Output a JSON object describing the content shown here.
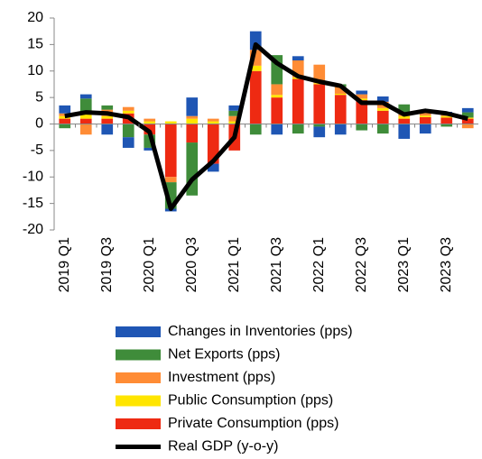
{
  "chart_data": {
    "type": "bar",
    "categories": [
      "2019 Q1",
      null,
      "2019 Q3",
      null,
      "2020 Q1",
      null,
      "2020 Q3",
      null,
      "2021 Q1",
      null,
      "2021 Q3",
      null,
      "2022 Q1",
      null,
      "2022 Q3",
      null,
      "2023 Q1",
      null,
      "2023 Q3",
      null
    ],
    "series": [
      {
        "name": "Changes in Inventories (pps)",
        "type": "bar",
        "color": "#1f56b4",
        "values": [
          1.5,
          0.8,
          -2.0,
          -2.0,
          -0.5,
          -0.5,
          3.5,
          -1.5,
          1.0,
          3.5,
          -2.0,
          0.8,
          -2.0,
          -2.0,
          0.7,
          1.0,
          -2.8,
          -1.8,
          0.5,
          0.8
        ]
      },
      {
        "name": "Net Exports (pps)",
        "type": "bar",
        "color": "#3f8c3a",
        "values": [
          -0.8,
          3.0,
          0.8,
          -2.5,
          -2.5,
          -5.0,
          -10.0,
          0.0,
          1.0,
          -2.0,
          5.5,
          -1.8,
          -0.5,
          0.5,
          -1.2,
          -1.8,
          1.9,
          0.3,
          -0.5,
          1.0
        ]
      },
      {
        "name": "Investment (pps)",
        "type": "bar",
        "color": "#ff8c35",
        "values": [
          0.5,
          -2.0,
          1.2,
          0.7,
          0.5,
          -1.0,
          0.5,
          0.5,
          1.0,
          3.0,
          2.0,
          3.2,
          3.5,
          1.3,
          0.8,
          1.2,
          0.3,
          0.5,
          0.3,
          -0.8
        ]
      },
      {
        "name": "Public Consumption (pps)",
        "type": "bar",
        "color": "#ffe500",
        "values": [
          0.5,
          0.8,
          0.5,
          0.5,
          0.5,
          0.5,
          1.0,
          0.5,
          0.5,
          1.0,
          0.5,
          0.3,
          0.2,
          0.2,
          0.3,
          0.5,
          0.5,
          0.3,
          0.3,
          0.2
        ]
      },
      {
        "name": "Private Consumption (pps)",
        "type": "bar",
        "color": "#ee2a12",
        "values": [
          1.0,
          1.0,
          1.0,
          2.0,
          -2.0,
          -10.0,
          -3.5,
          -7.5,
          -5.0,
          10.0,
          5.0,
          8.5,
          7.5,
          5.5,
          4.5,
          2.5,
          1.0,
          1.3,
          1.2,
          1.0
        ]
      },
      {
        "name": "Real GDP (y-o-y)",
        "type": "line",
        "color": "#000000",
        "values": [
          1.5,
          2.2,
          2.0,
          1.3,
          -1.5,
          -16.0,
          -10.5,
          -7.0,
          -2.5,
          15.0,
          11.5,
          9.0,
          8.0,
          7.2,
          4.0,
          4.0,
          1.8,
          2.5,
          2.0,
          1.0
        ]
      }
    ],
    "ylim": [
      -20,
      20
    ],
    "yticks": [
      -20,
      -15,
      -10,
      -5,
      0,
      5,
      10,
      15,
      20
    ]
  }
}
